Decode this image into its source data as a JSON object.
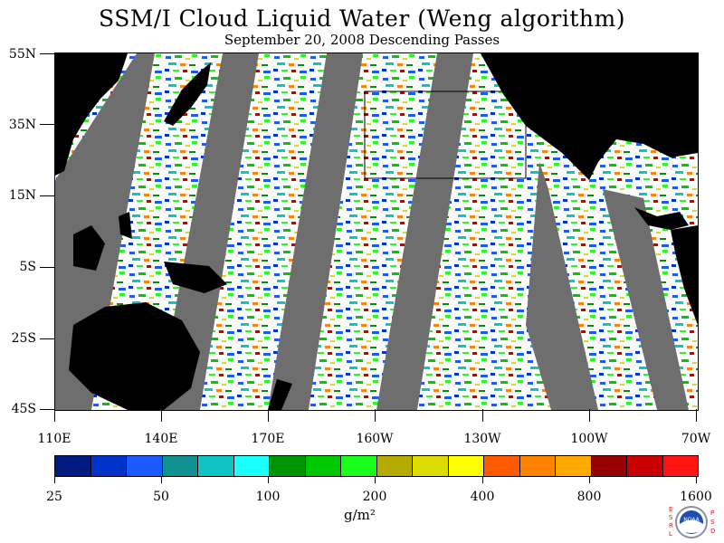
{
  "header": {
    "title": "SSM/I Cloud Liquid Water (Weng algorithm)",
    "subtitle": "September 20, 2008  Descending Passes"
  },
  "map": {
    "lat_labels": [
      "55N",
      "35N",
      "15N",
      "5S",
      "25S",
      "45S"
    ],
    "lon_labels": [
      "110E",
      "140E",
      "170E",
      "160W",
      "130W",
      "100W",
      "70W"
    ],
    "colors": {
      "land": "#000000",
      "no_data_swath_gap": "#6e6e6e",
      "ocean_low": "#ffffff"
    }
  },
  "legend": {
    "labels": [
      "25",
      "50",
      "100",
      "200",
      "400",
      "800",
      "1600"
    ],
    "colors": [
      "#001a80",
      "#0033c8",
      "#1a5aff",
      "#11918f",
      "#11c4c4",
      "#1affff",
      "#009400",
      "#00c800",
      "#1aff1a",
      "#b4aa00",
      "#dcdc00",
      "#ffff00",
      "#ff5a00",
      "#ff8200",
      "#ffaa00",
      "#960000",
      "#c80000",
      "#ff1414"
    ],
    "units": "g/m²"
  },
  "logo": {
    "name": "noaa-logo",
    "left_letters": "ESRL",
    "right_letters": "PSD",
    "center_text": "NOAA"
  }
}
